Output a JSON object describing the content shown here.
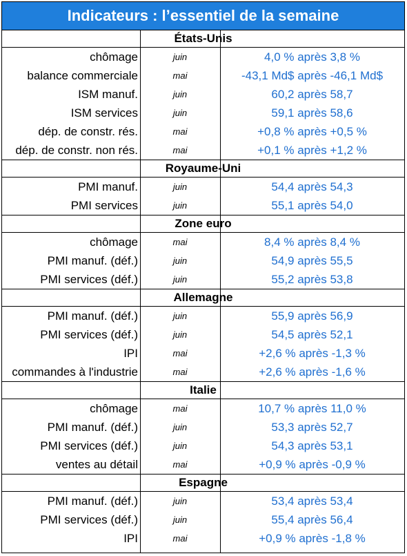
{
  "title": "Indicateurs : l’essentiel de la semaine",
  "sections": [
    {
      "name": "États-Unis",
      "rows": [
        {
          "label": "chômage",
          "period": "juin",
          "value": "4,0 % après 3,8 %"
        },
        {
          "label": "balance commerciale",
          "period": "mai",
          "value": "-43,1 Md$ après -46,1 Md$"
        },
        {
          "label": "ISM manuf.",
          "period": "juin",
          "value": "60,2 après 58,7"
        },
        {
          "label": "ISM services",
          "period": "juin",
          "value": "59,1 après 58,6"
        },
        {
          "label": "dép. de constr. rés.",
          "period": "mai",
          "value": "+0,8 % après +0,5 %"
        },
        {
          "label": "dép. de constr. non rés.",
          "period": "mai",
          "value": "+0,1 % après +1,2 %"
        }
      ]
    },
    {
      "name": "Royaume-Uni",
      "rows": [
        {
          "label": "PMI manuf.",
          "period": "juin",
          "value": "54,4 après 54,3"
        },
        {
          "label": "PMI services",
          "period": "juin",
          "value": "55,1 après 54,0"
        }
      ]
    },
    {
      "name": "Zone euro",
      "rows": [
        {
          "label": "chômage",
          "period": "mai",
          "value": "8,4 % après 8,4 %"
        },
        {
          "label": "PMI manuf. (déf.)",
          "period": "juin",
          "value": "54,9 après 55,5"
        },
        {
          "label": "PMI services (déf.)",
          "period": "juin",
          "value": "55,2 après 53,8"
        }
      ]
    },
    {
      "name": "Allemagne",
      "rows": [
        {
          "label": "PMI manuf. (déf.)",
          "period": "juin",
          "value": "55,9 après 56,9"
        },
        {
          "label": "PMI services (déf.)",
          "period": "juin",
          "value": "54,5 après 52,1"
        },
        {
          "label": "IPI",
          "period": "mai",
          "value": "+2,6 % après -1,3 %"
        },
        {
          "label": "commandes à l'industrie",
          "period": "mai",
          "value": "+2,6 % après -1,6 %"
        }
      ]
    },
    {
      "name": "Italie",
      "rows": [
        {
          "label": "chômage",
          "period": "mai",
          "value": "10,7 % après 11,0 %"
        },
        {
          "label": "PMI manuf. (déf.)",
          "period": "juin",
          "value": "53,3 après 52,7"
        },
        {
          "label": "PMI services (déf.)",
          "period": "juin",
          "value": "54,3 après 53,1"
        },
        {
          "label": "ventes au détail",
          "period": "mai",
          "value": "+0,9 % après -0,9 %"
        }
      ]
    },
    {
      "name": "Espagne",
      "rows": [
        {
          "label": "PMI manuf. (déf.)",
          "period": "juin",
          "value": "53,4 après 53,4"
        },
        {
          "label": "PMI services (déf.)",
          "period": "juin",
          "value": "55,4 après 56,4"
        },
        {
          "label": "IPI",
          "period": "mai",
          "value": "+0,9 % après -1,8 %"
        }
      ]
    }
  ]
}
